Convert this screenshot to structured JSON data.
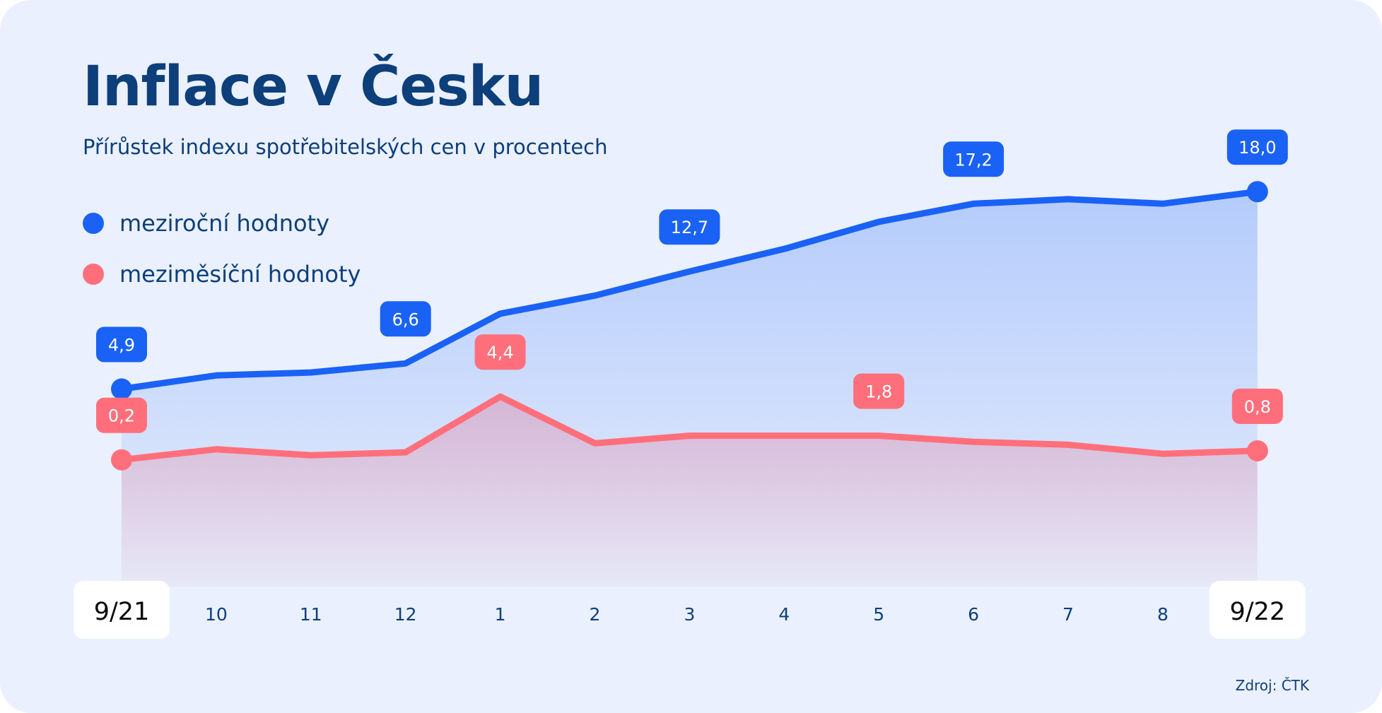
{
  "header": {
    "title": "Inflace v Česku",
    "subtitle": "Přírůstek indexu spotřebitelských cen v procentech"
  },
  "source": "Zdroj: ČTK",
  "colors": {
    "background": "#eaf0fd",
    "title": "#0d3f7a",
    "yoy": "#1a62f5",
    "mom": "#ff6f7b"
  },
  "chart_data": {
    "type": "line",
    "categories": [
      "9/21",
      "10",
      "11",
      "12",
      "1",
      "2",
      "3",
      "4",
      "5",
      "6",
      "7",
      "8",
      "9/22"
    ],
    "highlight_categories": [
      "9/21",
      "9/22"
    ],
    "series": [
      {
        "name": "meziroční hodnoty",
        "color": "#1a62f5",
        "values": [
          4.9,
          5.8,
          6.0,
          6.6,
          9.9,
          11.1,
          12.7,
          14.2,
          16.0,
          17.2,
          17.5,
          17.2,
          18.0
        ],
        "labeled_points": [
          0,
          3,
          6,
          9,
          12
        ],
        "labels": [
          "4,9",
          "6,6",
          "12,7",
          "17,2",
          "18,0"
        ]
      },
      {
        "name": "meziměsíční hodnoty",
        "color": "#ff6f7b",
        "values": [
          0.2,
          0.9,
          0.5,
          0.7,
          4.4,
          1.3,
          1.8,
          1.8,
          1.8,
          1.4,
          1.2,
          0.6,
          0.8
        ],
        "labeled_points": [
          0,
          4,
          8,
          12
        ],
        "labels": [
          "0,2",
          "4,4",
          "1,8",
          "0,8"
        ]
      }
    ],
    "grid": false,
    "legend": "top-left"
  }
}
